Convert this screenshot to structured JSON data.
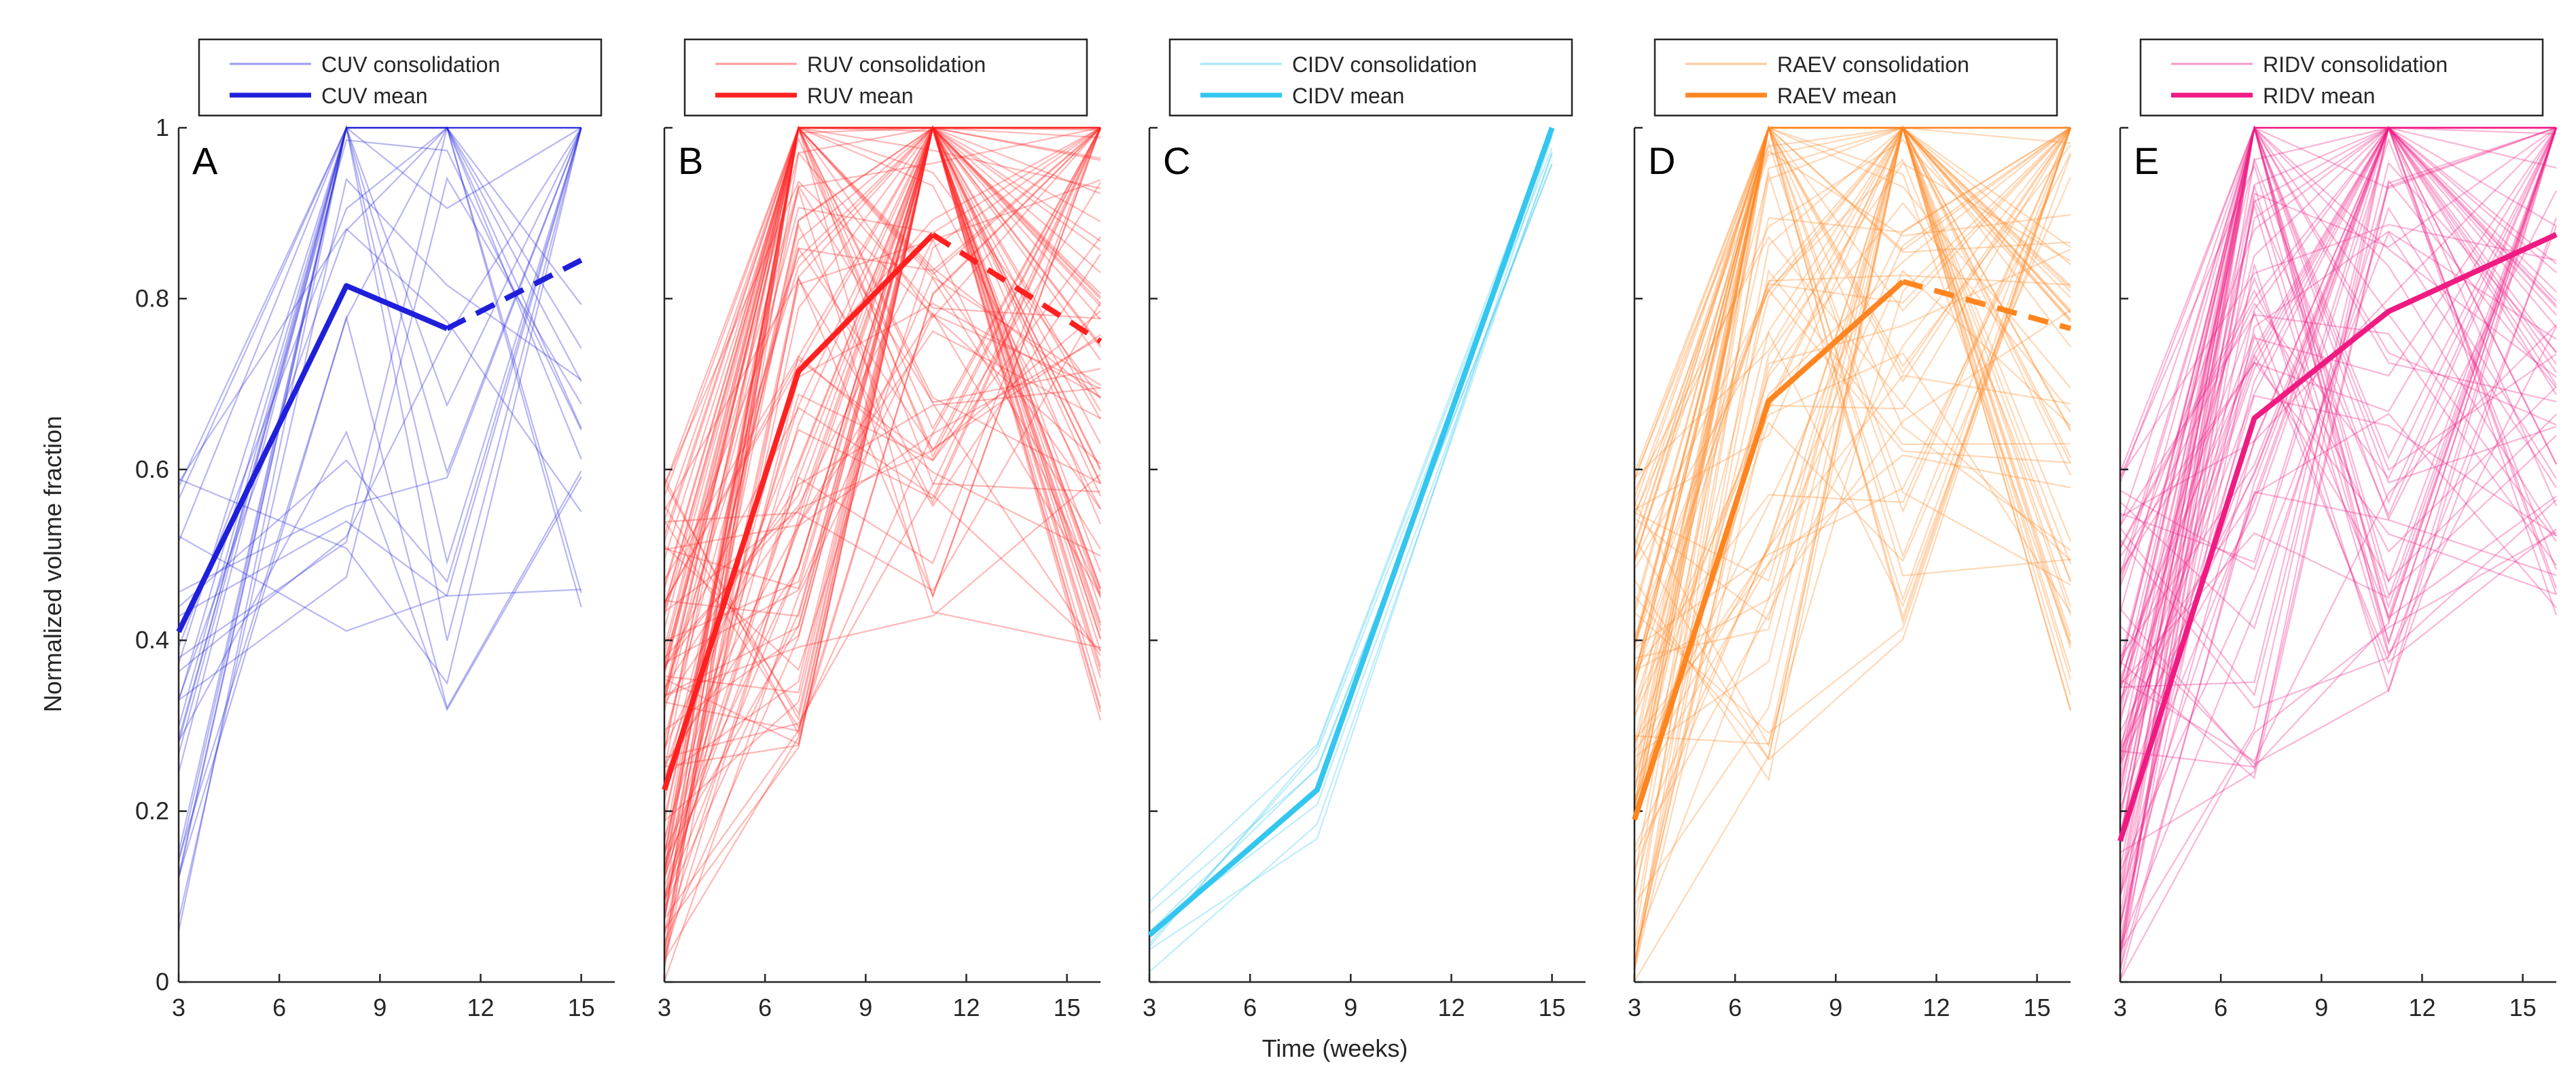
{
  "figure": {
    "ylabel": "Normalized volume fraction",
    "xlabel": "Time (weeks)",
    "yticks": [
      "0",
      "0.2",
      "0.4",
      "0.6",
      "0.8",
      "1"
    ]
  },
  "chart_data": [
    {
      "type": "line",
      "panel": "A",
      "color": "#1f1fdb",
      "ylim": [
        0,
        1
      ],
      "xlim": [
        3,
        16
      ],
      "xticks": [
        "3",
        "6",
        "9",
        "12",
        "15"
      ],
      "legend": {
        "individual": "CUV consolidation",
        "mean": "CUV mean"
      },
      "mean": {
        "x": [
          3,
          8,
          11,
          15
        ],
        "y": [
          0.41,
          0.815,
          0.765,
          0.845
        ],
        "dashed_from_index": 2
      },
      "individual_series": 30,
      "individual_x": [
        3,
        8,
        11,
        15
      ]
    },
    {
      "type": "line",
      "panel": "B",
      "color": "#ff2020",
      "ylim": [
        0,
        1
      ],
      "xlim": [
        3,
        16
      ],
      "xticks": [
        "3",
        "6",
        "9",
        "12",
        "15"
      ],
      "legend": {
        "individual": "RUV consolidation",
        "mean": "RUV mean"
      },
      "mean": {
        "x": [
          3,
          7,
          11,
          16
        ],
        "y": [
          0.225,
          0.715,
          0.875,
          0.75
        ],
        "dashed_from_index": 2
      },
      "individual_series": 110,
      "individual_x": [
        3,
        7,
        11,
        16
      ]
    },
    {
      "type": "line",
      "panel": "C",
      "color": "#33c6ef",
      "ylim": [
        0,
        1
      ],
      "xlim": [
        3,
        16
      ],
      "xticks": [
        "3",
        "6",
        "9",
        "12",
        "15"
      ],
      "legend": {
        "individual": "CIDV consolidation",
        "mean": "CIDV mean"
      },
      "mean": {
        "x": [
          3,
          8,
          15
        ],
        "y": [
          0.055,
          0.225,
          1.0
        ],
        "dashed_from_index": -1
      },
      "individual_series": 8,
      "individual_x": [
        3,
        8,
        15
      ]
    },
    {
      "type": "line",
      "panel": "D",
      "color": "#ff8520",
      "ylim": [
        0,
        1
      ],
      "xlim": [
        3,
        16
      ],
      "xticks": [
        "3",
        "6",
        "9",
        "12",
        "15"
      ],
      "legend": {
        "individual": "RAEV consolidation",
        "mean": "RAEV mean"
      },
      "mean": {
        "x": [
          3,
          7,
          11,
          16
        ],
        "y": [
          0.19,
          0.68,
          0.82,
          0.765
        ],
        "dashed_from_index": 2
      },
      "individual_series": 90,
      "individual_x": [
        3,
        7,
        11,
        16
      ]
    },
    {
      "type": "line",
      "panel": "E",
      "color": "#ef1a82",
      "ylim": [
        0,
        1
      ],
      "xlim": [
        3,
        16
      ],
      "xticks": [
        "3",
        "6",
        "9",
        "12",
        "15"
      ],
      "legend": {
        "individual": "RIDV consolidation",
        "mean": "RIDV mean"
      },
      "mean": {
        "x": [
          3,
          7,
          11,
          16
        ],
        "y": [
          0.165,
          0.66,
          0.785,
          0.875
        ],
        "dashed_from_index": -1
      },
      "individual_series": 90,
      "individual_x": [
        3,
        7,
        11,
        16
      ]
    }
  ]
}
